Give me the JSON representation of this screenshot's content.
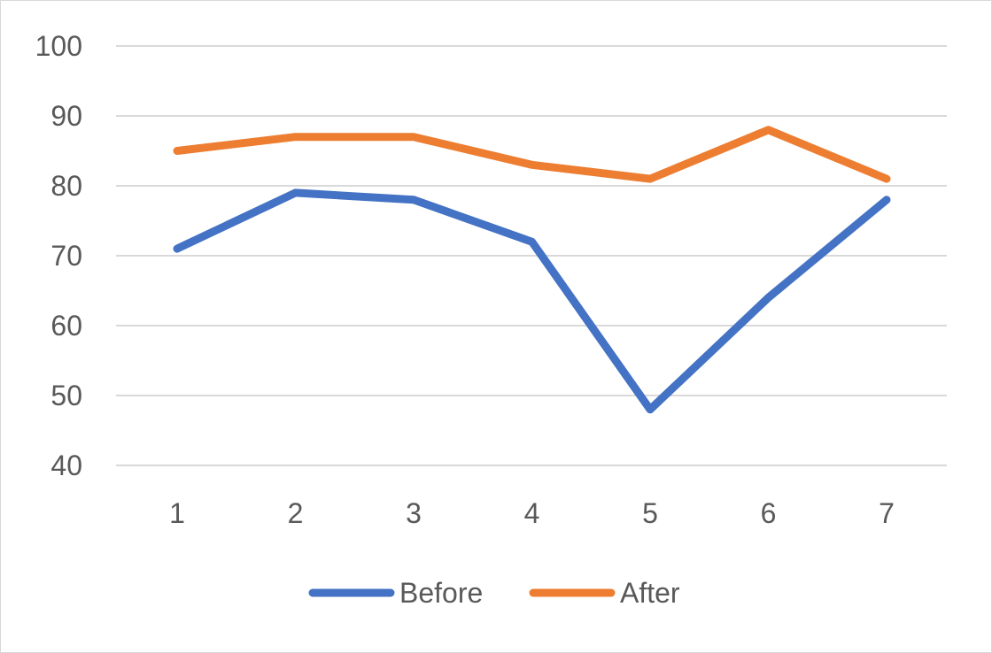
{
  "chart_data": {
    "type": "line",
    "title": "",
    "xlabel": "",
    "ylabel": "",
    "categories": [
      "1",
      "2",
      "3",
      "4",
      "5",
      "6",
      "7"
    ],
    "ylim": [
      40,
      100
    ],
    "yticks": [
      40,
      50,
      60,
      70,
      80,
      90,
      100
    ],
    "grid": true,
    "legend_position": "bottom",
    "series": [
      {
        "name": "Before",
        "color": "#4472C4",
        "values": [
          71,
          79,
          78,
          72,
          48,
          64,
          78
        ]
      },
      {
        "name": "After",
        "color": "#ED7D31",
        "values": [
          85,
          87,
          87,
          83,
          81,
          88,
          81
        ]
      }
    ]
  }
}
